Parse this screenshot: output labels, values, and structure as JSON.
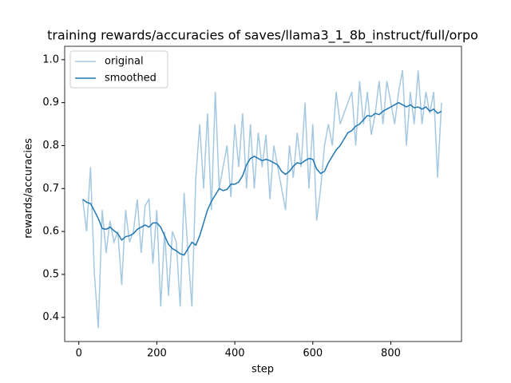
{
  "chart_data": {
    "type": "line",
    "title": "training rewards/accuracies of saves/llama3_1_8b_instruct/full/orpo",
    "x_label": "step",
    "y_label": "rewards/accuracies",
    "x": [
      10,
      20,
      30,
      40,
      50,
      60,
      70,
      80,
      90,
      100,
      110,
      120,
      130,
      140,
      150,
      160,
      170,
      180,
      190,
      200,
      210,
      220,
      230,
      240,
      250,
      260,
      270,
      280,
      290,
      300,
      310,
      320,
      330,
      340,
      350,
      360,
      370,
      380,
      390,
      400,
      410,
      420,
      430,
      440,
      450,
      460,
      470,
      480,
      490,
      500,
      510,
      520,
      530,
      540,
      550,
      560,
      570,
      580,
      590,
      600,
      610,
      620,
      630,
      640,
      650,
      660,
      670,
      680,
      690,
      700,
      710,
      720,
      730,
      740,
      750,
      760,
      770,
      780,
      790,
      800,
      810,
      820,
      830,
      840,
      850,
      860,
      870,
      880,
      890,
      900,
      910,
      920,
      930
    ],
    "series": [
      {
        "name": "original",
        "color": "#a5c8e1",
        "values": [
          0.675,
          0.6,
          0.75,
          0.5,
          0.375,
          0.65,
          0.55,
          0.625,
          0.575,
          0.6,
          0.475,
          0.65,
          0.575,
          0.6,
          0.675,
          0.55,
          0.66,
          0.675,
          0.525,
          0.65,
          0.425,
          0.6,
          0.45,
          0.6,
          0.575,
          0.425,
          0.69,
          0.55,
          0.425,
          0.725,
          0.85,
          0.7,
          0.875,
          0.65,
          0.925,
          0.7,
          0.75,
          0.8,
          0.68,
          0.85,
          0.75,
          0.875,
          0.7,
          0.85,
          0.7,
          0.83,
          0.75,
          0.825,
          0.675,
          0.8,
          0.75,
          0.7,
          0.65,
          0.8,
          0.725,
          0.83,
          0.75,
          0.9,
          0.7,
          0.85,
          0.625,
          0.7,
          0.8,
          0.85,
          0.8,
          0.925,
          0.85,
          0.875,
          0.9,
          0.925,
          0.8,
          0.95,
          0.85,
          0.925,
          0.825,
          0.875,
          0.95,
          0.85,
          0.95,
          0.9,
          0.85,
          0.925,
          0.975,
          0.8,
          0.925,
          0.85,
          0.975,
          0.85,
          0.925,
          0.875,
          0.925,
          0.725,
          0.9
        ]
      },
      {
        "name": "smoothed",
        "color": "#1f77b4",
        "values": [
          0.675,
          0.668,
          0.665,
          0.648,
          0.63,
          0.607,
          0.605,
          0.61,
          0.602,
          0.595,
          0.58,
          0.588,
          0.59,
          0.595,
          0.605,
          0.61,
          0.615,
          0.61,
          0.62,
          0.62,
          0.61,
          0.59,
          0.57,
          0.56,
          0.555,
          0.548,
          0.545,
          0.56,
          0.575,
          0.568,
          0.59,
          0.62,
          0.65,
          0.67,
          0.685,
          0.7,
          0.695,
          0.698,
          0.71,
          0.71,
          0.715,
          0.73,
          0.755,
          0.77,
          0.775,
          0.77,
          0.765,
          0.768,
          0.765,
          0.76,
          0.755,
          0.74,
          0.733,
          0.74,
          0.752,
          0.76,
          0.758,
          0.765,
          0.77,
          0.768,
          0.745,
          0.735,
          0.74,
          0.76,
          0.775,
          0.79,
          0.8,
          0.815,
          0.83,
          0.835,
          0.845,
          0.85,
          0.86,
          0.87,
          0.868,
          0.875,
          0.872,
          0.88,
          0.885,
          0.89,
          0.895,
          0.9,
          0.895,
          0.89,
          0.895,
          0.888,
          0.89,
          0.885,
          0.89,
          0.88,
          0.885,
          0.875,
          0.88
        ]
      }
    ],
    "xlim": [
      -36.25,
      981.25
    ],
    "ylim": [
      0.34375,
      1.03125
    ],
    "xticks": [
      0,
      200,
      400,
      600,
      800
    ],
    "yticks": [
      0.4,
      0.5,
      0.6,
      0.7,
      0.8,
      0.9,
      {
        "value": 1,
        "label": "1.0"
      }
    ],
    "legend": "upper left"
  }
}
